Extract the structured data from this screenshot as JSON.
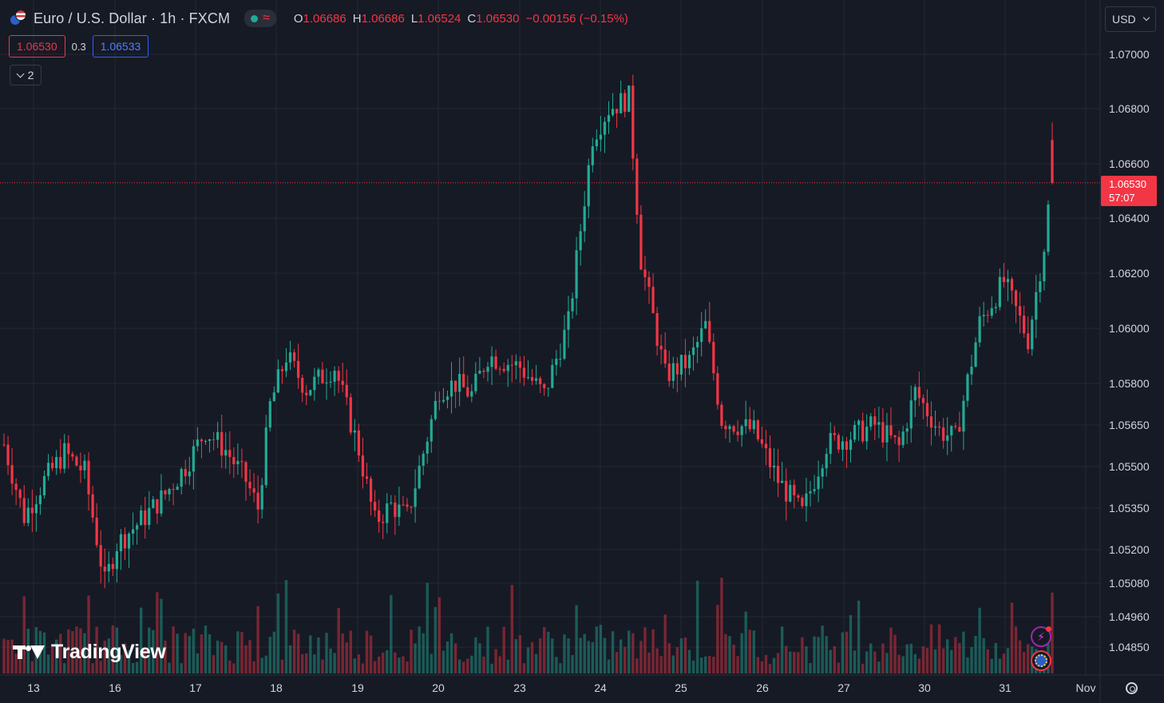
{
  "header": {
    "symbol": "Euro / U.S. Dollar · 1h · FXCM",
    "ohlc": {
      "o_label": "O",
      "o": "1.06686",
      "h_label": "H",
      "h": "1.06686",
      "l_label": "L",
      "l": "1.06524",
      "c_label": "C",
      "c": "1.06530",
      "change": "−0.00156 (−0.15%)"
    },
    "bid": "1.06530",
    "spread": "0.3",
    "ask": "1.06533",
    "indicators_count": "2"
  },
  "currency": "USD",
  "last_price_label": {
    "price": "1.06530",
    "countdown": "57:07"
  },
  "branding": {
    "name": "TradingView"
  },
  "colors": {
    "up": "#22ab94",
    "down": "#f23645",
    "background": "#161a25",
    "grid": "#242833"
  },
  "chart_data": {
    "type": "candlestick",
    "title": "Euro / U.S. Dollar · 1h · FXCM",
    "y_ticks": [
      1.07,
      1.068,
      1.066,
      1.064,
      1.062,
      1.06,
      1.058,
      1.0565,
      1.055,
      1.0535,
      1.052,
      1.0508,
      1.0496,
      1.0485
    ],
    "y_tick_labels": [
      "1.07000",
      "1.06800",
      "1.06600",
      "1.06400",
      "1.06200",
      "1.06000",
      "1.05800",
      "1.05650",
      "1.05500",
      "1.05350",
      "1.05200",
      "1.05080",
      "1.04960",
      "1.04850"
    ],
    "x_tick_labels": [
      "13",
      "16",
      "17",
      "18",
      "19",
      "20",
      "23",
      "24",
      "25",
      "26",
      "27",
      "30",
      "31",
      "Nov"
    ],
    "x_tick_bar_index": [
      8,
      30,
      50,
      70,
      90,
      110,
      130,
      150,
      170,
      190,
      210,
      230,
      250,
      270
    ],
    "last_price": 1.0653,
    "close_path": [
      [
        0,
        1.0558
      ],
      [
        5,
        1.0532
      ],
      [
        10,
        1.0545
      ],
      [
        15,
        1.0555
      ],
      [
        20,
        1.0548
      ],
      [
        25,
        1.0508
      ],
      [
        28,
        1.0522
      ],
      [
        35,
        1.0532
      ],
      [
        40,
        1.054
      ],
      [
        45,
        1.055
      ],
      [
        50,
        1.0563
      ],
      [
        55,
        1.0556
      ],
      [
        60,
        1.0545
      ],
      [
        63,
        1.0535
      ],
      [
        66,
        1.0572
      ],
      [
        70,
        1.059
      ],
      [
        75,
        1.0578
      ],
      [
        82,
        1.0586
      ],
      [
        88,
        1.0556
      ],
      [
        92,
        1.053
      ],
      [
        96,
        1.0536
      ],
      [
        100,
        1.0532
      ],
      [
        104,
        1.0555
      ],
      [
        108,
        1.0578
      ],
      [
        112,
        1.058
      ],
      [
        116,
        1.0576
      ],
      [
        120,
        1.059
      ],
      [
        128,
        1.0586
      ],
      [
        134,
        1.0576
      ],
      [
        140,
        1.0602
      ],
      [
        146,
        1.067
      ],
      [
        150,
        1.068
      ],
      [
        155,
        1.0684
      ],
      [
        158,
        1.0625
      ],
      [
        164,
        1.0583
      ],
      [
        170,
        1.0588
      ],
      [
        174,
        1.0601
      ],
      [
        178,
        1.0567
      ],
      [
        186,
        1.0563
      ],
      [
        192,
        1.0545
      ],
      [
        198,
        1.0533
      ],
      [
        204,
        1.0558
      ],
      [
        210,
        1.0561
      ],
      [
        216,
        1.0565
      ],
      [
        222,
        1.0557
      ],
      [
        226,
        1.0577
      ],
      [
        232,
        1.0563
      ],
      [
        236,
        1.056
      ],
      [
        242,
        1.0602
      ],
      [
        248,
        1.0617
      ],
      [
        254,
        1.0596
      ],
      [
        258,
        1.063
      ],
      [
        260,
        1.0653
      ]
    ]
  }
}
